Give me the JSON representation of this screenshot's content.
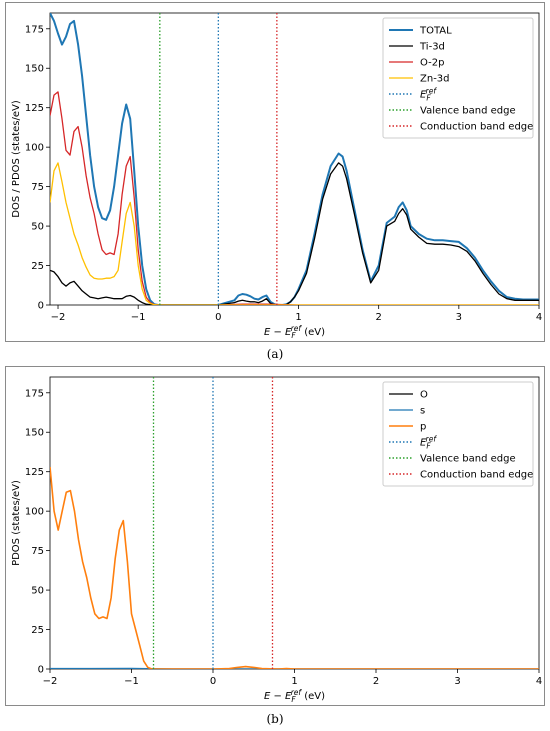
{
  "panels": {
    "a": {
      "caption": "(a)"
    },
    "b": {
      "caption": "(b)"
    }
  },
  "chart_data": [
    {
      "type": "line",
      "panel": "a",
      "xlabel": "E − E_F^ref (eV)",
      "ylabel": "DOS / PDOS (states/eV)",
      "xlim": [
        -2.1,
        4.0
      ],
      "ylim": [
        0,
        185
      ],
      "xticks": [
        -2,
        -1,
        0,
        1,
        2,
        3,
        4
      ],
      "yticks": [
        0,
        25,
        50,
        75,
        100,
        125,
        150,
        175
      ],
      "grid": false,
      "legend_position": "top-right",
      "series": [
        {
          "name": "TOTAL",
          "color": "#1f77b4",
          "width": 2,
          "x": [
            -2.1,
            -2.05,
            -2.0,
            -1.95,
            -1.9,
            -1.85,
            -1.8,
            -1.75,
            -1.7,
            -1.65,
            -1.6,
            -1.55,
            -1.5,
            -1.45,
            -1.4,
            -1.35,
            -1.3,
            -1.25,
            -1.2,
            -1.15,
            -1.1,
            -1.05,
            -1.0,
            -0.95,
            -0.9,
            -0.85,
            -0.8,
            -0.75,
            -0.6,
            -0.4,
            -0.2,
            0.0,
            0.2,
            0.25,
            0.3,
            0.35,
            0.4,
            0.45,
            0.5,
            0.55,
            0.6,
            0.65,
            0.7,
            0.75,
            0.8,
            0.85,
            0.9,
            0.95,
            1.0,
            1.1,
            1.2,
            1.3,
            1.4,
            1.5,
            1.55,
            1.6,
            1.7,
            1.8,
            1.9,
            2.0,
            2.1,
            2.2,
            2.25,
            2.3,
            2.35,
            2.4,
            2.5,
            2.6,
            2.7,
            2.8,
            2.9,
            3.0,
            3.1,
            3.2,
            3.3,
            3.4,
            3.5,
            3.6,
            3.7,
            3.8,
            3.9,
            4.0
          ],
          "y": [
            185,
            180,
            172,
            165,
            170,
            178,
            180,
            165,
            145,
            120,
            95,
            75,
            62,
            55,
            54,
            60,
            75,
            95,
            115,
            127,
            118,
            85,
            50,
            25,
            10,
            3,
            0.5,
            0,
            0,
            0,
            0,
            0,
            3,
            6,
            7,
            6.5,
            5.5,
            4,
            3.5,
            5,
            6,
            2,
            0.5,
            0,
            0,
            0.5,
            2,
            5,
            10,
            22,
            45,
            70,
            88,
            96,
            94,
            85,
            60,
            35,
            15,
            25,
            52,
            56,
            62,
            65,
            60,
            50,
            45,
            42,
            41,
            41,
            40.5,
            40,
            36,
            30,
            22,
            15,
            9,
            5,
            4,
            3.5,
            3.5,
            3.5
          ]
        },
        {
          "name": "Ti-3d",
          "color": "#000000",
          "width": 1.3,
          "x": [
            -2.1,
            -2.05,
            -2.0,
            -1.95,
            -1.9,
            -1.85,
            -1.8,
            -1.75,
            -1.7,
            -1.65,
            -1.6,
            -1.55,
            -1.5,
            -1.45,
            -1.4,
            -1.35,
            -1.3,
            -1.25,
            -1.2,
            -1.15,
            -1.1,
            -1.05,
            -1.0,
            -0.95,
            -0.9,
            -0.85,
            -0.8,
            -0.6,
            -0.4,
            -0.2,
            0.0,
            0.2,
            0.25,
            0.3,
            0.35,
            0.4,
            0.45,
            0.5,
            0.55,
            0.6,
            0.65,
            0.7,
            0.75,
            0.8,
            0.85,
            0.9,
            0.95,
            1.0,
            1.1,
            1.2,
            1.3,
            1.4,
            1.5,
            1.55,
            1.6,
            1.7,
            1.8,
            1.9,
            2.0,
            2.1,
            2.2,
            2.25,
            2.3,
            2.35,
            2.4,
            2.5,
            2.6,
            2.7,
            2.8,
            2.9,
            3.0,
            3.1,
            3.2,
            3.3,
            3.4,
            3.5,
            3.6,
            3.7,
            3.8,
            3.9,
            4.0
          ],
          "y": [
            22,
            21,
            18,
            14,
            12,
            14,
            15,
            12,
            9,
            7,
            5,
            4.5,
            4,
            4.5,
            5,
            4.5,
            4,
            4,
            4,
            5.5,
            6,
            5,
            3,
            1.5,
            0.5,
            0.2,
            0,
            0,
            0,
            0,
            0,
            1.5,
            2.5,
            3,
            2.5,
            2,
            2,
            1.5,
            2.5,
            4,
            1,
            0.3,
            0,
            0,
            0.3,
            2,
            5,
            9,
            20,
            42,
            67,
            83,
            90,
            88,
            80,
            57,
            33,
            14,
            22,
            50,
            53,
            58,
            61,
            57,
            48,
            43,
            39,
            38.5,
            38.5,
            38,
            37,
            34,
            28,
            20,
            13,
            7,
            4,
            3,
            3,
            3,
            3
          ]
        },
        {
          "name": "O-2p",
          "color": "#d62728",
          "width": 1.3,
          "x": [
            -2.1,
            -2.05,
            -2.0,
            -1.95,
            -1.9,
            -1.85,
            -1.8,
            -1.75,
            -1.7,
            -1.65,
            -1.6,
            -1.55,
            -1.5,
            -1.45,
            -1.4,
            -1.35,
            -1.3,
            -1.25,
            -1.2,
            -1.15,
            -1.1,
            -1.05,
            -1.0,
            -0.95,
            -0.9,
            -0.85,
            -0.8,
            -0.75,
            -0.6,
            -0.4,
            -0.2,
            0.0,
            0.3,
            0.6,
            1.0,
            2.0,
            3.0,
            4.0
          ],
          "y": [
            120,
            133,
            135,
            118,
            98,
            95,
            110,
            113,
            100,
            82,
            68,
            58,
            45,
            35,
            32,
            33,
            32,
            45,
            70,
            88,
            94,
            68,
            35,
            15,
            5,
            1.5,
            0.3,
            0,
            0,
            0,
            0,
            0,
            0.5,
            0.5,
            0,
            0,
            0,
            0
          ]
        },
        {
          "name": "Zn-3d",
          "color": "#ffc000",
          "width": 1.3,
          "x": [
            -2.1,
            -2.05,
            -2.0,
            -1.95,
            -1.9,
            -1.85,
            -1.8,
            -1.75,
            -1.7,
            -1.65,
            -1.6,
            -1.55,
            -1.5,
            -1.45,
            -1.4,
            -1.35,
            -1.3,
            -1.25,
            -1.2,
            -1.15,
            -1.1,
            -1.05,
            -1.0,
            -0.95,
            -0.9,
            -0.85,
            -0.8,
            -0.75,
            -0.6,
            0.0,
            1.0,
            2.0,
            3.0,
            4.0
          ],
          "y": [
            65,
            85,
            90,
            78,
            65,
            55,
            45,
            38,
            30,
            24,
            19,
            17,
            16.5,
            16.5,
            17,
            17,
            18,
            22,
            40,
            58,
            65,
            50,
            25,
            10,
            3,
            1,
            0.2,
            0,
            0,
            0,
            0,
            0,
            0,
            0
          ]
        },
        {
          "name": "E_F^ref",
          "color": "#1f77b4",
          "dashed": true,
          "vline": 0.0
        },
        {
          "name": "Valence band edge",
          "color": "#2ca02c",
          "dashed": true,
          "vline": -0.73
        },
        {
          "name": "Conduction band edge",
          "color": "#d62728",
          "dashed": true,
          "vline": 0.73
        }
      ]
    },
    {
      "type": "line",
      "panel": "b",
      "xlabel": "E − E_F^ref (eV)",
      "ylabel": "PDOS (states/eV)",
      "xlim": [
        -2.0,
        4.0
      ],
      "ylim": [
        0,
        185
      ],
      "xticks": [
        -2,
        -1,
        0,
        1,
        2,
        3,
        4
      ],
      "yticks": [
        0,
        25,
        50,
        75,
        100,
        125,
        150,
        175
      ],
      "grid": false,
      "legend_position": "top-right",
      "series": [
        {
          "name": "O",
          "color": "#000000",
          "width": 1.3,
          "x": [
            -2.0,
            -1.0,
            -0.8,
            0.0,
            1.0,
            2.0,
            3.0,
            4.0
          ],
          "y": [
            0,
            0,
            0,
            0,
            0,
            0,
            0,
            0
          ]
        },
        {
          "name": "s",
          "color": "#1f77b4",
          "width": 1.3,
          "x": [
            -2.0,
            -1.5,
            -1.0,
            -0.8,
            -0.5,
            0.0,
            1.0,
            2.0,
            3.0,
            4.0
          ],
          "y": [
            0.3,
            0.3,
            0.4,
            0.2,
            0,
            0,
            0,
            0,
            0,
            0
          ]
        },
        {
          "name": "p",
          "color": "#ff7f0e",
          "width": 1.6,
          "x": [
            -2.0,
            -1.95,
            -1.9,
            -1.85,
            -1.8,
            -1.75,
            -1.7,
            -1.65,
            -1.6,
            -1.55,
            -1.5,
            -1.45,
            -1.4,
            -1.35,
            -1.3,
            -1.25,
            -1.2,
            -1.15,
            -1.1,
            -1.05,
            -1.0,
            -0.95,
            -0.9,
            -0.85,
            -0.8,
            -0.75,
            -0.6,
            -0.4,
            -0.2,
            0.0,
            0.2,
            0.3,
            0.4,
            0.5,
            0.6,
            0.8,
            0.9,
            1.0,
            2.0,
            3.0,
            4.0
          ],
          "y": [
            128,
            100,
            88,
            100,
            112,
            113,
            100,
            82,
            68,
            58,
            45,
            35,
            32,
            33,
            32,
            45,
            70,
            88,
            94,
            68,
            35,
            25,
            15,
            5,
            1,
            0,
            0,
            0,
            0,
            0,
            0.3,
            1,
            1.5,
            1,
            0.3,
            0,
            0.3,
            0,
            0,
            0,
            0
          ]
        },
        {
          "name": "E_F^ref",
          "color": "#1f77b4",
          "dashed": true,
          "vline": 0.0
        },
        {
          "name": "Valence band edge",
          "color": "#2ca02c",
          "dashed": true,
          "vline": -0.73
        },
        {
          "name": "Conduction band edge",
          "color": "#d62728",
          "dashed": true,
          "vline": 0.73
        }
      ]
    }
  ]
}
